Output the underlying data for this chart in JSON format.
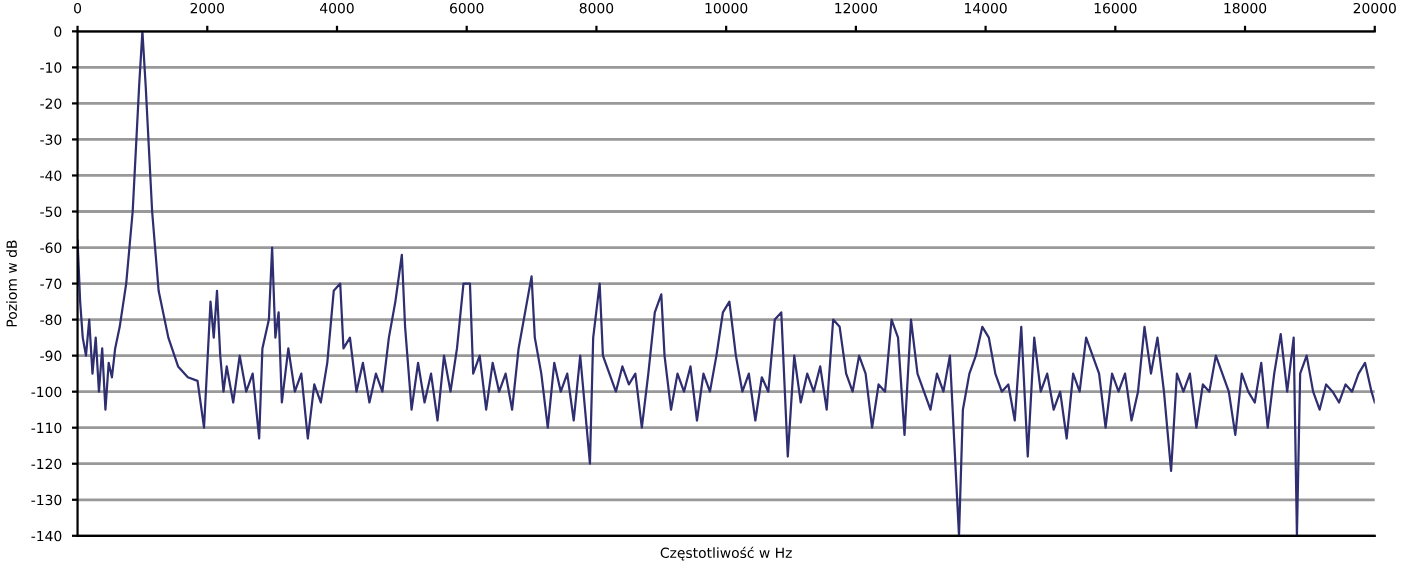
{
  "chart_data": {
    "type": "line",
    "xlabel": "Częstotliwość w Hz",
    "ylabel": "Poziom w dB",
    "xlim": [
      0,
      20000
    ],
    "xticks": [
      0,
      2000,
      4000,
      6000,
      8000,
      10000,
      12000,
      14000,
      16000,
      18000,
      20000
    ],
    "ylim": [
      -140,
      0
    ],
    "yticks": [
      0,
      -10,
      -20,
      -30,
      -40,
      -50,
      -60,
      -70,
      -80,
      -90,
      -100,
      -110,
      -120,
      -130,
      -140
    ],
    "grid": "y",
    "marker": "none",
    "line_style": "solid",
    "series": [
      {
        "color": "#2e2e70",
        "x": [
          0,
          40,
          80,
          130,
          180,
          230,
          280,
          330,
          380,
          430,
          480,
          530,
          580,
          650,
          750,
          850,
          950,
          1000,
          1050,
          1150,
          1250,
          1400,
          1550,
          1700,
          1850,
          1950,
          2050,
          2100,
          2150,
          2200,
          2250,
          2300,
          2400,
          2500,
          2600,
          2700,
          2800,
          2850,
          2950,
          3000,
          3050,
          3100,
          3150,
          3250,
          3350,
          3450,
          3550,
          3650,
          3750,
          3850,
          3950,
          4050,
          4100,
          4200,
          4300,
          4400,
          4500,
          4600,
          4700,
          4800,
          4900,
          5000,
          5050,
          5150,
          5250,
          5350,
          5450,
          5550,
          5650,
          5750,
          5850,
          5950,
          6050,
          6100,
          6200,
          6300,
          6400,
          6500,
          6600,
          6700,
          6800,
          6900,
          7000,
          7050,
          7150,
          7250,
          7350,
          7450,
          7550,
          7650,
          7750,
          7900,
          7950,
          8050,
          8100,
          8200,
          8300,
          8400,
          8500,
          8600,
          8700,
          8800,
          8900,
          9000,
          9050,
          9150,
          9250,
          9350,
          9450,
          9550,
          9650,
          9750,
          9850,
          9950,
          10050,
          10150,
          10250,
          10350,
          10450,
          10550,
          10650,
          10750,
          10850,
          10950,
          11050,
          11150,
          11250,
          11350,
          11450,
          11550,
          11650,
          11750,
          11850,
          11950,
          12050,
          12150,
          12250,
          12350,
          12450,
          12550,
          12650,
          12750,
          12850,
          12950,
          13050,
          13150,
          13250,
          13350,
          13450,
          13590,
          13650,
          13750,
          13850,
          13950,
          14050,
          14150,
          14250,
          14350,
          14450,
          14550,
          14650,
          14750,
          14850,
          14950,
          15050,
          15150,
          15250,
          15350,
          15450,
          15550,
          15650,
          15750,
          15850,
          15950,
          16050,
          16150,
          16250,
          16350,
          16450,
          16550,
          16650,
          16750,
          16860,
          16950,
          17050,
          17150,
          17250,
          17350,
          17450,
          17550,
          17650,
          17750,
          17850,
          17950,
          18050,
          18150,
          18250,
          18350,
          18450,
          18550,
          18650,
          18750,
          18800,
          18850,
          18950,
          19050,
          19150,
          19250,
          19350,
          19450,
          19550,
          19650,
          19750,
          19850,
          19950,
          20000
        ],
        "values": [
          -58,
          -75,
          -85,
          -90,
          -80,
          -95,
          -85,
          -100,
          -88,
          -105,
          -92,
          -96,
          -88,
          -82,
          -70,
          -50,
          -15,
          0,
          -15,
          -50,
          -72,
          -85,
          -93,
          -96,
          -97,
          -110,
          -75,
          -85,
          -72,
          -90,
          -100,
          -93,
          -103,
          -90,
          -100,
          -95,
          -113,
          -88,
          -80,
          -60,
          -85,
          -78,
          -103,
          -88,
          -100,
          -95,
          -113,
          -98,
          -103,
          -92,
          -72,
          -70,
          -88,
          -85,
          -100,
          -92,
          -103,
          -95,
          -100,
          -85,
          -75,
          -62,
          -82,
          -105,
          -92,
          -103,
          -95,
          -108,
          -90,
          -100,
          -88,
          -70,
          -70,
          -95,
          -90,
          -105,
          -92,
          -100,
          -95,
          -105,
          -88,
          -78,
          -68,
          -85,
          -95,
          -110,
          -92,
          -100,
          -95,
          -108,
          -90,
          -120,
          -85,
          -70,
          -90,
          -95,
          -100,
          -93,
          -98,
          -95,
          -110,
          -95,
          -78,
          -73,
          -90,
          -105,
          -95,
          -100,
          -93,
          -108,
          -95,
          -100,
          -90,
          -78,
          -75,
          -90,
          -100,
          -95,
          -108,
          -96,
          -100,
          -80,
          -78,
          -118,
          -90,
          -103,
          -95,
          -100,
          -93,
          -105,
          -80,
          -82,
          -95,
          -100,
          -90,
          -95,
          -110,
          -98,
          -100,
          -80,
          -85,
          -112,
          -80,
          -95,
          -100,
          -105,
          -95,
          -100,
          -90,
          -140,
          -105,
          -95,
          -90,
          -82,
          -85,
          -95,
          -100,
          -98,
          -108,
          -82,
          -118,
          -85,
          -100,
          -95,
          -105,
          -100,
          -113,
          -95,
          -100,
          -85,
          -90,
          -95,
          -110,
          -95,
          -100,
          -95,
          -108,
          -100,
          -82,
          -95,
          -85,
          -100,
          -122,
          -95,
          -100,
          -95,
          -110,
          -98,
          -100,
          -90,
          -95,
          -100,
          -112,
          -95,
          -100,
          -103,
          -92,
          -110,
          -95,
          -84,
          -100,
          -85,
          -140,
          -95,
          -90,
          -100,
          -105,
          -98,
          -100,
          -103,
          -98,
          -100,
          -95,
          -92,
          -100,
          -103
        ]
      }
    ]
  }
}
